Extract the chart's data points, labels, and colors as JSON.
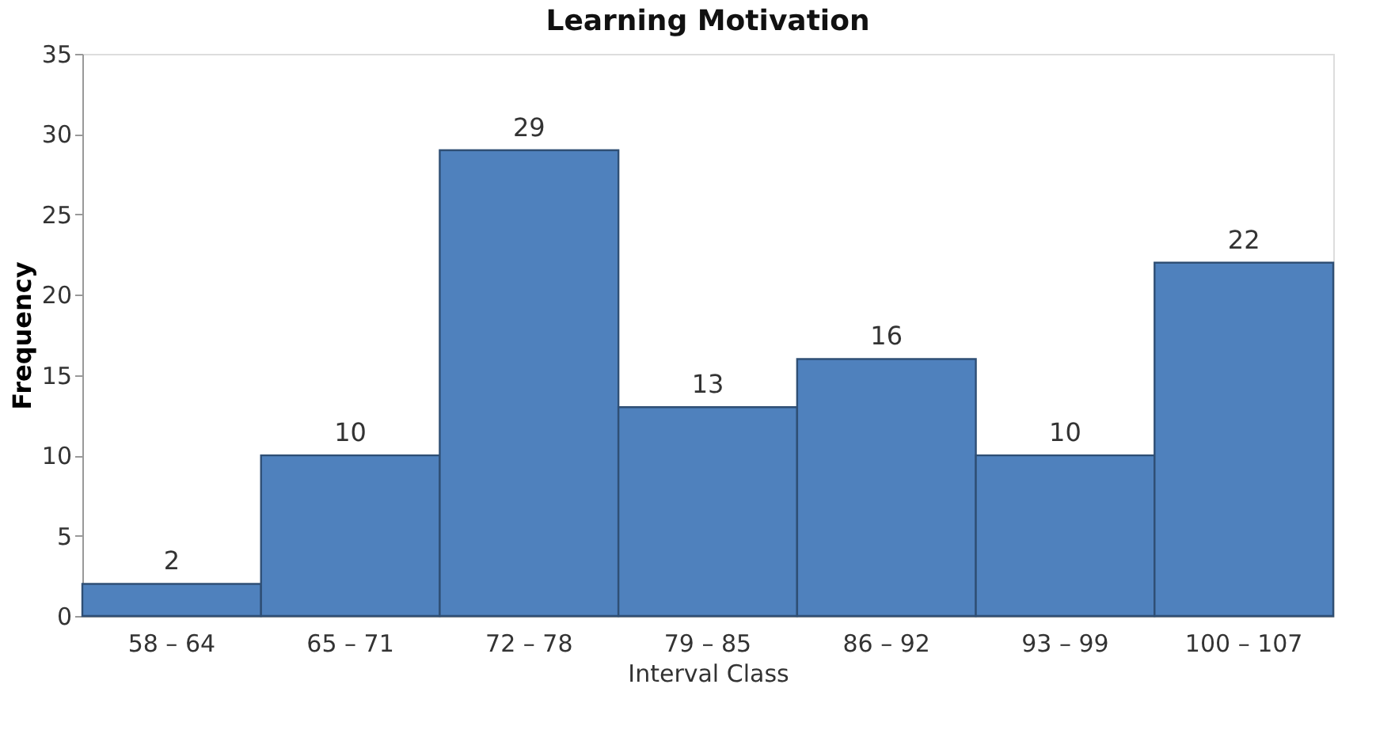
{
  "chart_data": {
    "type": "bar",
    "title": "Learning Motivation",
    "xlabel": "Interval Class",
    "ylabel": "Frequency",
    "categories": [
      "58  – 64",
      "65 – 71",
      "72 – 78",
      "79 – 85",
      "86 – 92",
      "93 – 99",
      "100 – 107"
    ],
    "values": [
      2,
      10,
      29,
      13,
      16,
      10,
      22
    ],
    "color": "#4f81bd",
    "ylim": [
      0,
      35
    ],
    "yticks": [
      0,
      5,
      10,
      15,
      20,
      25,
      30,
      35
    ],
    "grid": false,
    "data_labels": true
  }
}
